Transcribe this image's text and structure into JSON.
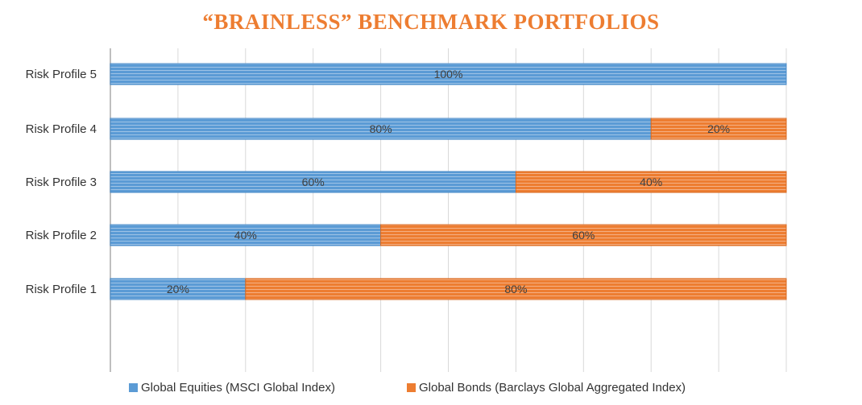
{
  "chart_data": {
    "type": "bar",
    "orientation": "horizontal",
    "stacked": true,
    "title": "“BRAINLESS” BENCHMARK PORTFOLIOS",
    "categories": [
      "Risk Profile 5",
      "Risk Profile 4",
      "Risk Profile 3",
      "Risk Profile 2",
      "Risk Profile 1"
    ],
    "series": [
      {
        "name": "Global Equities (MSCI Global Index)",
        "color": "#5b9bd5",
        "values": [
          100,
          80,
          60,
          40,
          20
        ],
        "labels": [
          "100%",
          "80%",
          "60%",
          "40%",
          "20%"
        ]
      },
      {
        "name": "Global Bonds (Barclays Global Aggregated Index)",
        "color": "#ed7d31",
        "values": [
          0,
          20,
          40,
          60,
          80
        ],
        "labels": [
          "",
          "20%",
          "40%",
          "60%",
          "80%"
        ]
      }
    ],
    "xlim": [
      0,
      100
    ],
    "grid": true,
    "legend_position": "bottom"
  }
}
